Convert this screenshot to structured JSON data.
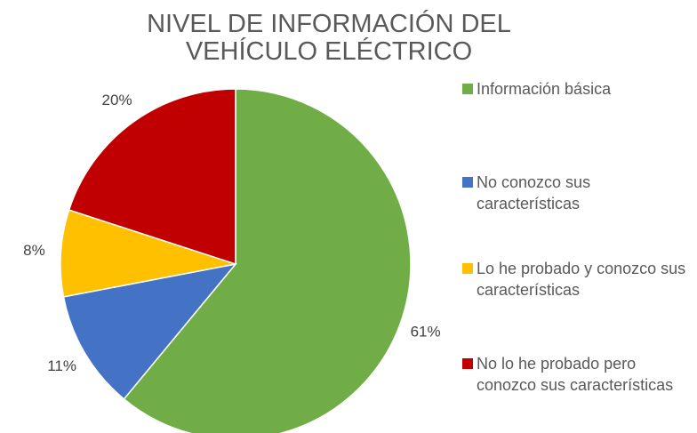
{
  "chart_data": {
    "type": "pie",
    "title": "NIVEL DE INFORMACIÓN DEL VEHÍCULO ELÉCTRICO",
    "categories": [
      "Información básica",
      "No conozco sus características",
      "Lo he probado y conozco sus características",
      "No lo he probado pero conozco sus características"
    ],
    "values": [
      61,
      11,
      8,
      20
    ],
    "value_labels": [
      "61%",
      "11%",
      "8%",
      "20%"
    ],
    "colors": [
      "#70ad47",
      "#4472c4",
      "#ffc000",
      "#c00000"
    ],
    "legend": "right"
  }
}
